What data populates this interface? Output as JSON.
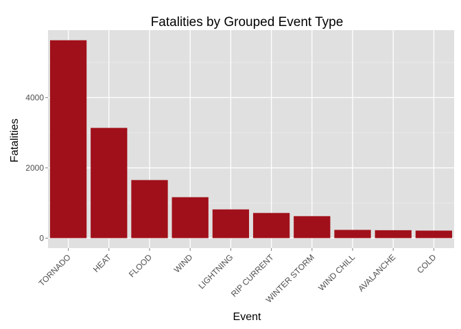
{
  "chart_data": {
    "type": "bar",
    "title": "Fatalities by Grouped Event Type",
    "xlabel": "Event",
    "ylabel": "Fatalities",
    "categories": [
      "TORNADO",
      "HEAT",
      "FLOOD",
      "WIND",
      "LIGHTNING",
      "RIP CURRENT",
      "WINTER STORM",
      "WIND CHILL",
      "AVALANCHE",
      "COLD"
    ],
    "values": [
      5633,
      3138,
      1653,
      1165,
      817,
      716,
      625,
      234,
      225,
      214
    ],
    "ylim": [
      -285,
      5920
    ],
    "yticks": [
      0,
      2000,
      4000
    ],
    "ytick_labels": [
      "0",
      "2000",
      "4000"
    ],
    "grid": true,
    "legend": "none",
    "colors": {
      "bar": "#a0101a",
      "panel": "#e0e0e0",
      "grid_major": "#ffffff",
      "grid_minor": "#ebebeb",
      "tick": "#7f7f7f"
    }
  }
}
